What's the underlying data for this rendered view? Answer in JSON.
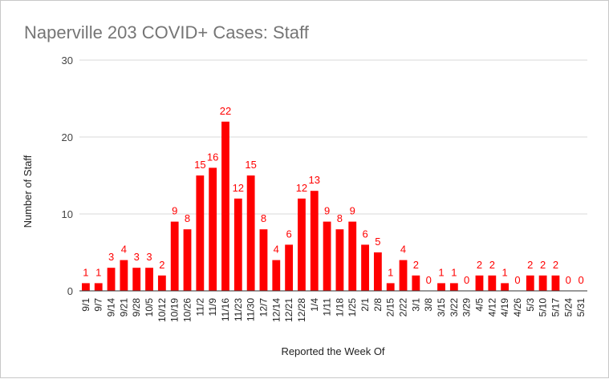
{
  "chart_data": {
    "type": "bar",
    "title": "Naperville 203 COVID+ Cases: Staff",
    "xlabel": "Reported the Week Of",
    "ylabel": "Number of Staff",
    "ylim": [
      0,
      30
    ],
    "yticks": [
      "0",
      "10",
      "20",
      "30"
    ],
    "grid": true,
    "legend": "none",
    "bar_color": "#ff0000",
    "categories": [
      "9/1",
      "9/7",
      "9/14",
      "9/21",
      "9/28",
      "10/5",
      "10/12",
      "10/19",
      "10/26",
      "11/2",
      "11/9",
      "11/16",
      "11/23",
      "11/30",
      "12/7",
      "12/14",
      "12/21",
      "12/28",
      "1/4",
      "1/11",
      "1/18",
      "1/25",
      "2/1",
      "2/8",
      "2/15",
      "2/22",
      "3/1",
      "3/8",
      "3/15",
      "3/22",
      "3/29",
      "4/5",
      "4/12",
      "4/19",
      "4/26",
      "5/3",
      "5/10",
      "5/17",
      "5/24",
      "5/31"
    ],
    "values": [
      1,
      1,
      3,
      4,
      3,
      3,
      2,
      9,
      8,
      15,
      16,
      22,
      12,
      15,
      8,
      4,
      6,
      12,
      13,
      9,
      8,
      9,
      6,
      5,
      1,
      4,
      2,
      0,
      1,
      1,
      0,
      2,
      2,
      1,
      0,
      2,
      2,
      2,
      0,
      0
    ]
  }
}
